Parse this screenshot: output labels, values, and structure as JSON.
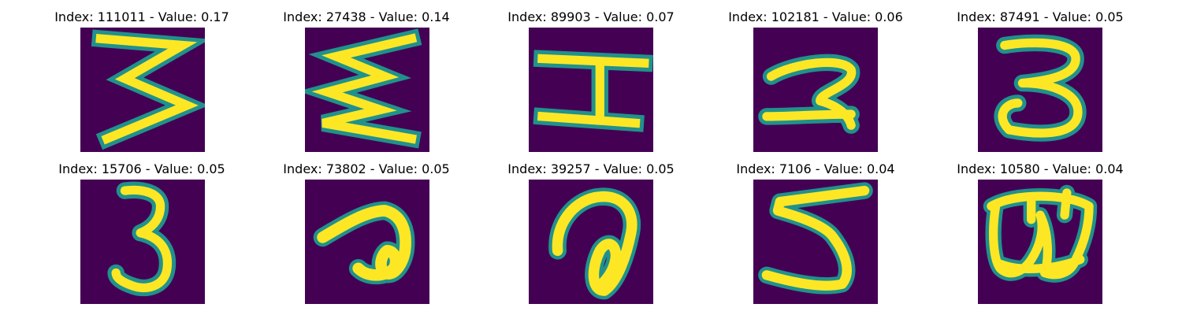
{
  "colors": {
    "background": "#440154",
    "glyph": "#fde725",
    "halo": "#21918c"
  },
  "panels": [
    {
      "title": "Index: 111011 - Value: 0.17",
      "glyph_icon": "digit-3-pointed-icon"
    },
    {
      "title": "Index: 27438 - Value: 0.14",
      "glyph_icon": "sigma-zigzag-icon"
    },
    {
      "title": "Index: 89903 - Value: 0.07",
      "glyph_icon": "letter-i-icon"
    },
    {
      "title": "Index: 102181 - Value: 0.06",
      "glyph_icon": "digit-2-icon"
    },
    {
      "title": "Index: 87491 - Value: 0.05",
      "glyph_icon": "digit-3-round-icon"
    },
    {
      "title": "Index: 15706 - Value: 0.05",
      "glyph_icon": "digit-3-narrow-icon"
    },
    {
      "title": "Index: 73802 - Value: 0.05",
      "glyph_icon": "loop-a-icon"
    },
    {
      "title": "Index: 39257 - Value: 0.05",
      "glyph_icon": "loop-a-tall-icon"
    },
    {
      "title": "Index: 7106 - Value: 0.04",
      "glyph_icon": "digit-5-icon"
    },
    {
      "title": "Index: 10580 - Value: 0.04",
      "glyph_icon": "digit-8-icon"
    }
  ]
}
